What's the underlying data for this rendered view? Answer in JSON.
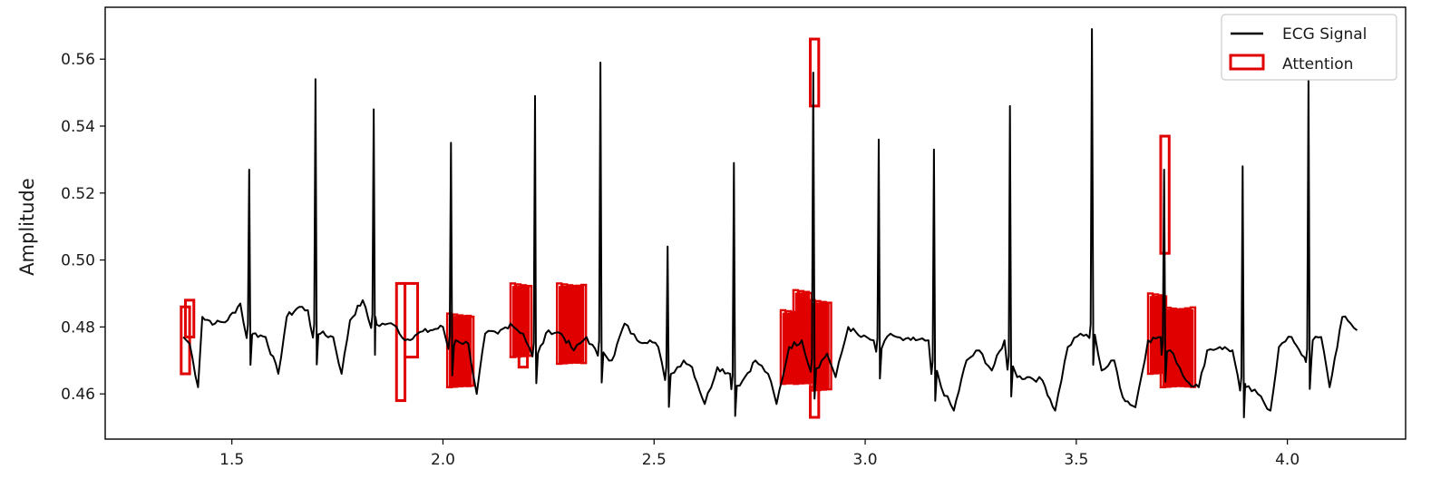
{
  "chart_data": {
    "type": "line",
    "title": "",
    "xlabel": "",
    "ylabel": "Amplitude",
    "xlim": [
      1.2,
      4.28
    ],
    "ylim": [
      0.4465,
      0.5755
    ],
    "x_ticks": [
      1.5,
      2.0,
      2.5,
      3.0,
      3.5,
      4.0
    ],
    "x_tick_labels": [
      "1.5",
      "2.0",
      "2.5",
      "3.0",
      "3.5",
      "4.0"
    ],
    "y_ticks": [
      0.46,
      0.48,
      0.5,
      0.52,
      0.54,
      0.56
    ],
    "y_tick_labels": [
      "0.46",
      "0.48",
      "0.50",
      "0.52",
      "0.54",
      "0.56"
    ],
    "grid": false,
    "legend_position": "top-right",
    "series": [
      {
        "name": "ECG Signal",
        "color": "#000000",
        "baseline": [
          [
            1.385,
            0.477
          ],
          [
            1.4,
            0.475
          ],
          [
            1.42,
            0.462
          ],
          [
            1.43,
            0.483
          ],
          [
            1.46,
            0.481
          ],
          [
            1.49,
            0.482
          ],
          [
            1.52,
            0.487
          ],
          [
            1.55,
            0.478
          ],
          [
            1.58,
            0.477
          ],
          [
            1.61,
            0.466
          ],
          [
            1.63,
            0.483
          ],
          [
            1.66,
            0.486
          ],
          [
            1.68,
            0.485
          ],
          [
            1.71,
            0.478
          ],
          [
            1.74,
            0.477
          ],
          [
            1.76,
            0.466
          ],
          [
            1.78,
            0.482
          ],
          [
            1.81,
            0.488
          ],
          [
            1.84,
            0.483
          ],
          [
            1.87,
            0.481
          ],
          [
            1.89,
            0.48
          ],
          [
            1.91,
            0.476
          ],
          [
            1.94,
            0.478
          ],
          [
            1.97,
            0.479
          ],
          [
            2.0,
            0.48
          ],
          [
            2.03,
            0.476
          ],
          [
            2.06,
            0.475
          ],
          [
            2.08,
            0.46
          ],
          [
            2.1,
            0.478
          ],
          [
            2.13,
            0.478
          ],
          [
            2.16,
            0.481
          ],
          [
            2.19,
            0.478
          ],
          [
            2.22,
            0.475
          ],
          [
            2.25,
            0.479
          ],
          [
            2.28,
            0.478
          ],
          [
            2.31,
            0.473
          ],
          [
            2.34,
            0.477
          ],
          [
            2.37,
            0.476
          ],
          [
            2.4,
            0.47
          ],
          [
            2.43,
            0.481
          ],
          [
            2.46,
            0.476
          ],
          [
            2.49,
            0.476
          ],
          [
            2.51,
            0.474
          ],
          [
            2.54,
            0.466
          ],
          [
            2.57,
            0.47
          ],
          [
            2.59,
            0.468
          ],
          [
            2.62,
            0.457
          ],
          [
            2.65,
            0.468
          ],
          [
            2.68,
            0.466
          ],
          [
            2.71,
            0.464
          ],
          [
            2.74,
            0.47
          ],
          [
            2.77,
            0.466
          ],
          [
            2.79,
            0.457
          ],
          [
            2.82,
            0.474
          ],
          [
            2.85,
            0.476
          ],
          [
            2.88,
            0.47
          ],
          [
            2.91,
            0.472
          ],
          [
            2.93,
            0.465
          ],
          [
            2.96,
            0.48
          ],
          [
            2.99,
            0.477
          ],
          [
            3.02,
            0.476
          ],
          [
            3.06,
            0.478
          ],
          [
            3.09,
            0.476
          ],
          [
            3.12,
            0.476
          ],
          [
            3.15,
            0.476
          ],
          [
            3.18,
            0.462
          ],
          [
            3.21,
            0.455
          ],
          [
            3.24,
            0.47
          ],
          [
            3.27,
            0.473
          ],
          [
            3.3,
            0.467
          ],
          [
            3.33,
            0.476
          ],
          [
            3.36,
            0.465
          ],
          [
            3.39,
            0.465
          ],
          [
            3.42,
            0.464
          ],
          [
            3.45,
            0.455
          ],
          [
            3.48,
            0.474
          ],
          [
            3.51,
            0.478
          ],
          [
            3.54,
            0.481
          ],
          [
            3.56,
            0.467
          ],
          [
            3.59,
            0.47
          ],
          [
            3.61,
            0.459
          ],
          [
            3.64,
            0.456
          ],
          [
            3.67,
            0.476
          ],
          [
            3.7,
            0.477
          ],
          [
            3.73,
            0.472
          ],
          [
            3.76,
            0.464
          ],
          [
            3.79,
            0.462
          ],
          [
            3.81,
            0.473
          ],
          [
            3.84,
            0.474
          ],
          [
            3.87,
            0.473
          ],
          [
            3.9,
            0.463
          ],
          [
            3.93,
            0.46
          ],
          [
            3.96,
            0.455
          ],
          [
            3.98,
            0.474
          ],
          [
            4.01,
            0.477
          ],
          [
            4.04,
            0.471
          ],
          [
            4.06,
            0.476
          ],
          [
            4.08,
            0.477
          ],
          [
            4.1,
            0.462
          ],
          [
            4.13,
            0.483
          ],
          [
            4.15,
            0.481
          ],
          [
            4.165,
            0.479
          ]
        ],
        "peaks": [
          [
            1.541,
            0.527
          ],
          [
            1.698,
            0.554
          ],
          [
            1.836,
            0.545
          ],
          [
            2.019,
            0.535
          ],
          [
            2.218,
            0.549
          ],
          [
            2.373,
            0.559
          ],
          [
            2.532,
            0.504
          ],
          [
            2.689,
            0.529
          ],
          [
            2.877,
            0.556
          ],
          [
            3.032,
            0.536
          ],
          [
            3.163,
            0.533
          ],
          [
            3.343,
            0.546
          ],
          [
            3.537,
            0.569
          ],
          [
            3.708,
            0.527
          ],
          [
            3.894,
            0.528
          ],
          [
            4.05,
            0.554
          ]
        ]
      }
    ],
    "attention": {
      "name": "Attention",
      "color": "#e00000",
      "regions": [
        {
          "x0": 1.38,
          "x1": 1.4,
          "y0": 0.466,
          "y1": 0.486
        },
        {
          "x0": 1.39,
          "x1": 1.41,
          "y0": 0.477,
          "y1": 0.488
        },
        {
          "x0": 1.89,
          "x1": 1.91,
          "y0": 0.458,
          "y1": 0.493
        },
        {
          "x0": 1.91,
          "x1": 1.94,
          "y0": 0.471,
          "y1": 0.493
        },
        {
          "x0": 2.01,
          "x1": 2.07,
          "y0": 0.462,
          "y1": 0.484
        },
        {
          "x0": 2.16,
          "x1": 2.21,
          "y0": 0.471,
          "y1": 0.493
        },
        {
          "x0": 2.18,
          "x1": 2.2,
          "y0": 0.468,
          "y1": 0.483
        },
        {
          "x0": 2.27,
          "x1": 2.34,
          "y0": 0.469,
          "y1": 0.493
        },
        {
          "x0": 2.8,
          "x1": 2.87,
          "y0": 0.463,
          "y1": 0.485
        },
        {
          "x0": 2.83,
          "x1": 2.87,
          "y0": 0.463,
          "y1": 0.491
        },
        {
          "x0": 2.87,
          "x1": 2.92,
          "y0": 0.461,
          "y1": 0.488
        },
        {
          "x0": 2.87,
          "x1": 2.89,
          "y0": 0.453,
          "y1": 0.462
        },
        {
          "x0": 2.87,
          "x1": 2.89,
          "y0": 0.546,
          "y1": 0.566
        },
        {
          "x0": 3.67,
          "x1": 3.71,
          "y0": 0.466,
          "y1": 0.49
        },
        {
          "x0": 3.7,
          "x1": 3.78,
          "y0": 0.462,
          "y1": 0.486
        },
        {
          "x0": 3.7,
          "x1": 3.72,
          "y0": 0.502,
          "y1": 0.537
        }
      ]
    }
  },
  "legend": {
    "items": [
      {
        "label": "ECG Signal",
        "kind": "line",
        "color": "#000000"
      },
      {
        "label": "Attention",
        "kind": "box",
        "color": "#e00000"
      }
    ]
  }
}
